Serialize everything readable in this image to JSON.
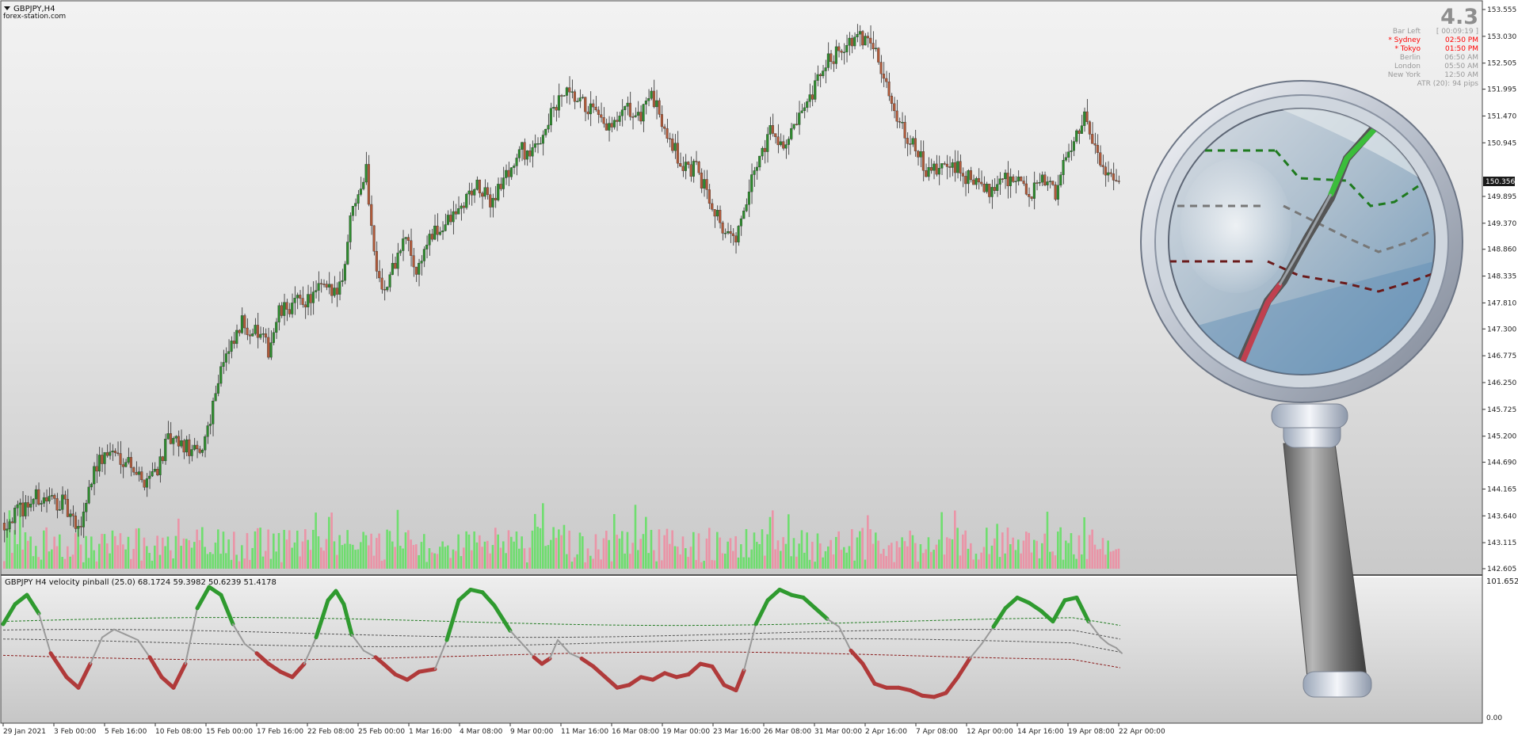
{
  "window": {
    "symbol_title": "GBPJPY,H4",
    "watermark": "forex-station.com"
  },
  "info_panel": {
    "big_number": "4.3",
    "rows": [
      {
        "label": "Bar Left",
        "value": "[ 00:09:19 ]",
        "color": "#999999"
      },
      {
        "label": "* Sydney",
        "value": "02:50 PM",
        "color": "#ff0000"
      },
      {
        "label": "* Tokyo",
        "value": "01:50 PM",
        "color": "#ff0000"
      },
      {
        "label": "Berlin",
        "value": "06:50 AM",
        "color": "#999999"
      },
      {
        "label": "London",
        "value": "05:50 AM",
        "color": "#999999"
      },
      {
        "label": "New York",
        "value": "12:50 AM",
        "color": "#999999"
      }
    ],
    "atr": "ATR (20): 94 pips"
  },
  "price_axis": {
    "labels": [
      "153.555",
      "153.030",
      "152.505",
      "151.995",
      "151.470",
      "150.945",
      "150.356",
      "149.895",
      "149.370",
      "148.860",
      "148.335",
      "147.810",
      "147.300",
      "146.775",
      "146.250",
      "145.725",
      "145.200",
      "144.690",
      "144.165",
      "143.640",
      "143.115",
      "142.605"
    ],
    "current_price": "150.356"
  },
  "indicator": {
    "title": "GBPJPY H4 velocity pinball (25.0) 68.1724 59.3982 50.6239 51.4178",
    "axis_top": "101.6525",
    "axis_bottom": "0.00"
  },
  "time_axis": {
    "labels": [
      "29 Jan 2021",
      "3 Feb 00:00",
      "5 Feb 16:00",
      "10 Feb 08:00",
      "15 Feb 00:00",
      "17 Feb 16:00",
      "22 Feb 08:00",
      "25 Feb 00:00",
      "1 Mar 16:00",
      "4 Mar 08:00",
      "9 Mar 00:00",
      "11 Mar 16:00",
      "16 Mar 08:00",
      "19 Mar 00:00",
      "23 Mar 16:00",
      "26 Mar 08:00",
      "31 Mar 00:00",
      "2 Apr 16:00",
      "7 Apr 08:00",
      "12 Apr 00:00",
      "14 Apr 16:00",
      "19 Apr 08:00",
      "22 Apr 00:00"
    ]
  },
  "colors": {
    "bull": "#2e8b2e",
    "bear": "#b05a3a",
    "vol_bull": "#5ee05e",
    "vol_bear": "#f08aa0",
    "osc_green": "#2f9a2f",
    "osc_red": "#b03a3a",
    "osc_gray": "#9a9a9a",
    "lvl_green": "#1e7a1e",
    "lvl_red": "#8a1a1a",
    "lvl_gray": "#555555"
  },
  "chart_data": {
    "type": "candlestick",
    "symbol": "GBPJPY",
    "timeframe": "H4",
    "price_range": [
      142.605,
      153.555
    ],
    "price_path": [
      [
        0,
        143.5
      ],
      [
        12,
        144.0
      ],
      [
        22,
        143.9
      ],
      [
        28,
        143.3
      ],
      [
        34,
        144.6
      ],
      [
        40,
        144.9
      ],
      [
        48,
        144.7
      ],
      [
        52,
        144.3
      ],
      [
        58,
        144.6
      ],
      [
        62,
        145.1
      ],
      [
        68,
        145.0
      ],
      [
        74,
        144.8
      ],
      [
        78,
        145.6
      ],
      [
        82,
        146.6
      ],
      [
        86,
        146.9
      ],
      [
        90,
        147.4
      ],
      [
        96,
        147.2
      ],
      [
        100,
        146.9
      ],
      [
        104,
        147.6
      ],
      [
        110,
        147.8
      ],
      [
        116,
        147.9
      ],
      [
        120,
        148.1
      ],
      [
        124,
        148.0
      ],
      [
        128,
        148.3
      ],
      [
        132,
        149.8
      ],
      [
        137,
        150.4
      ],
      [
        140,
        148.8
      ],
      [
        144,
        148.0
      ],
      [
        148,
        148.6
      ],
      [
        152,
        149.1
      ],
      [
        156,
        148.4
      ],
      [
        160,
        149.0
      ],
      [
        166,
        149.3
      ],
      [
        172,
        149.6
      ],
      [
        178,
        150.1
      ],
      [
        184,
        149.8
      ],
      [
        190,
        150.3
      ],
      [
        196,
        150.8
      ],
      [
        200,
        150.7
      ],
      [
        206,
        151.4
      ],
      [
        212,
        151.9
      ],
      [
        218,
        151.7
      ],
      [
        222,
        151.6
      ],
      [
        226,
        151.3
      ],
      [
        230,
        151.2
      ],
      [
        236,
        151.6
      ],
      [
        240,
        151.4
      ],
      [
        244,
        151.9
      ],
      [
        248,
        151.5
      ],
      [
        252,
        151.1
      ],
      [
        256,
        150.5
      ],
      [
        262,
        150.4
      ],
      [
        268,
        149.8
      ],
      [
        272,
        149.3
      ],
      [
        276,
        149.0
      ],
      [
        280,
        149.5
      ],
      [
        284,
        150.4
      ],
      [
        290,
        151.2
      ],
      [
        296,
        150.9
      ],
      [
        300,
        151.3
      ],
      [
        304,
        151.6
      ],
      [
        310,
        152.4
      ],
      [
        316,
        152.8
      ],
      [
        320,
        152.9
      ],
      [
        326,
        153.0
      ],
      [
        330,
        152.9
      ],
      [
        334,
        152.0
      ],
      [
        338,
        151.5
      ],
      [
        344,
        150.9
      ],
      [
        350,
        150.3
      ],
      [
        356,
        150.5
      ],
      [
        362,
        150.4
      ],
      [
        366,
        150.2
      ],
      [
        372,
        150.0
      ],
      [
        378,
        150.3
      ],
      [
        384,
        150.2
      ],
      [
        388,
        149.9
      ],
      [
        394,
        150.2
      ],
      [
        398,
        150.0
      ],
      [
        402,
        150.6
      ],
      [
        406,
        151.2
      ],
      [
        410,
        151.5
      ],
      [
        414,
        150.6
      ],
      [
        418,
        150.4
      ],
      [
        422,
        150.3
      ]
    ],
    "volume_scale": "relative",
    "oscillator": {
      "name": "velocity pinball",
      "period": 25.0,
      "values": [
        68.1724,
        59.3982,
        50.6239,
        51.4178
      ],
      "range": [
        0.0,
        101.6525
      ]
    }
  }
}
